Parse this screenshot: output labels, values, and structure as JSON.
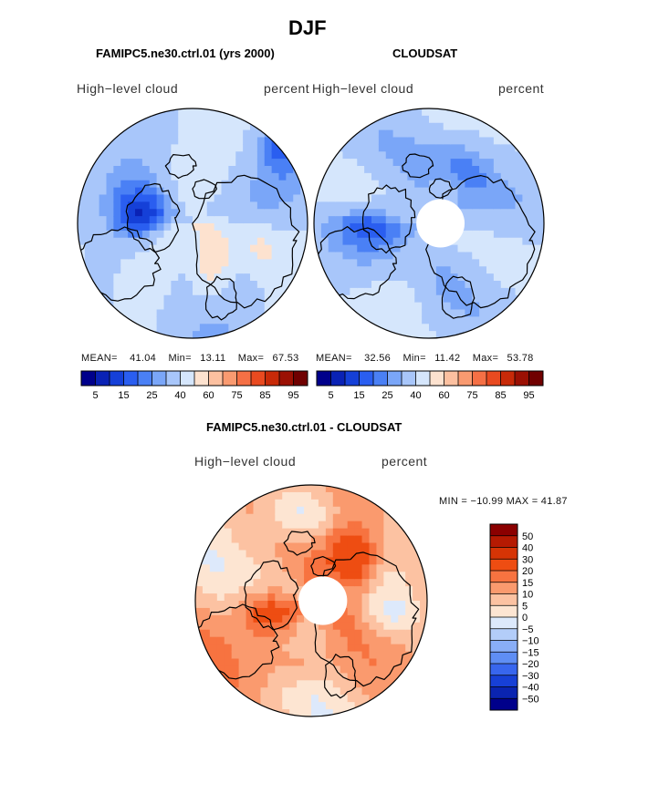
{
  "title": "DJF",
  "panels": [
    {
      "heading": "FAMIPC5.ne30.ctrl.01 (yrs 2000)",
      "left_label": "High−level cloud",
      "right_label": "percent",
      "mean_label": "MEAN=",
      "mean": "41.04",
      "min_label": "Min=",
      "min": "13.11",
      "max_label": "Max=",
      "max": "67.53"
    },
    {
      "heading": "CLOUDSAT",
      "left_label": "High−level cloud",
      "right_label": "percent",
      "mean_label": "MEAN=",
      "mean": "32.56",
      "min_label": "Min=",
      "min": "11.42",
      "max_label": "Max=",
      "max": "53.78"
    }
  ],
  "diff_panel": {
    "heading": "FAMIPC5.ne30.ctrl.01 - CLOUDSAT",
    "left_label": "High−level cloud",
    "right_label": "percent",
    "minmax_text": "MIN = −10.99 MAX =   41.87"
  },
  "chart_data": [
    {
      "type": "heatmap",
      "projection": "north polar stereographic",
      "title": "FAMIPC5.ne30.ctrl.01 (yrs 2000)",
      "variable": "High-level cloud",
      "units": "percent",
      "mean": 41.04,
      "min": 13.11,
      "max": 67.53,
      "colorbar_levels": [
        5,
        10,
        15,
        20,
        25,
        30,
        40,
        50,
        60,
        70,
        75,
        80,
        85,
        90,
        95
      ],
      "colorbar_tick_labels": [
        "5",
        "15",
        "25",
        "40",
        "60",
        "75",
        "85",
        "95"
      ]
    },
    {
      "type": "heatmap",
      "projection": "north polar stereographic",
      "title": "CLOUDSAT",
      "variable": "High-level cloud",
      "units": "percent",
      "mean": 32.56,
      "min": 11.42,
      "max": 53.78,
      "colorbar_levels": [
        5,
        10,
        15,
        20,
        25,
        30,
        40,
        50,
        60,
        70,
        75,
        80,
        85,
        90,
        95
      ],
      "colorbar_tick_labels": [
        "5",
        "15",
        "25",
        "40",
        "60",
        "75",
        "85",
        "95"
      ]
    },
    {
      "type": "heatmap",
      "projection": "north polar stereographic",
      "title": "FAMIPC5.ne30.ctrl.01 - CLOUDSAT",
      "variable": "High-level cloud",
      "units": "percent",
      "min": -10.99,
      "max": 41.87,
      "colorbar_levels": [
        50,
        40,
        30,
        20,
        15,
        10,
        5,
        0,
        -5,
        -10,
        -15,
        -20,
        -30,
        -40,
        -50
      ],
      "colorbar_tick_labels": [
        "50",
        "40",
        "30",
        "20",
        "15",
        "10",
        "5",
        "0",
        "−5",
        "−10",
        "−15",
        "−20",
        "−30",
        "−40",
        "−50"
      ]
    }
  ],
  "colors": {
    "seq_scale": [
      "#00008b",
      "#0a22b5",
      "#1540d8",
      "#2a5ef0",
      "#4a80f5",
      "#7aa6f8",
      "#a8c6fa",
      "#d5e6fc",
      "#fde2cf",
      "#fcc0a0",
      "#f99a70",
      "#f57045",
      "#e94a20",
      "#c82a08",
      "#9b1003",
      "#700000"
    ],
    "diff_scale": [
      "#8b0000",
      "#b51a02",
      "#d63405",
      "#ee4d12",
      "#f77340",
      "#fa9a6e",
      "#fcc2a2",
      "#fde5d2",
      "#dde9fb",
      "#b3cdf9",
      "#89aef7",
      "#5f8ef4",
      "#3866ee",
      "#1740d6",
      "#0a24b0",
      "#00008b"
    ],
    "coast": "#000000"
  },
  "icons": {
    "map": "polar-map-icon"
  }
}
